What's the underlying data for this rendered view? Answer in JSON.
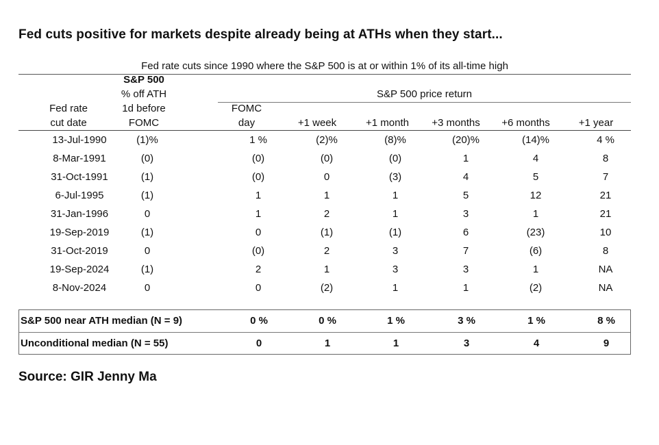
{
  "headline": "Fed cuts positive for markets despite already being at ATHs when they start...",
  "subtitle": "Fed rate cuts since 1990 where the S&P 500 is at or within 1% of its all-time high",
  "header": {
    "col_date": [
      "Fed rate",
      "cut date"
    ],
    "col_off": [
      "S&P 500",
      "% off ATH",
      "1d before",
      "FOMC"
    ],
    "group": "S&P 500 price return",
    "col_fomc": [
      "FOMC",
      "day"
    ],
    "col_week": "+1 week",
    "col_month": "+1 month",
    "col_3m": "+3 months",
    "col_6m": "+6 months",
    "col_1y": "+1 year"
  },
  "rows": [
    [
      "13-Jul-1990",
      "(1)%",
      "1 %",
      "(2)%",
      "(8)%",
      "(20)%",
      "(14)%",
      "4 %"
    ],
    [
      "8-Mar-1991",
      "(0)",
      "(0)",
      "(0)",
      "(0)",
      "1",
      "4",
      "8"
    ],
    [
      "31-Oct-1991",
      "(1)",
      "(0)",
      "0",
      "(3)",
      "4",
      "5",
      "7"
    ],
    [
      "6-Jul-1995",
      "(1)",
      "1",
      "1",
      "1",
      "5",
      "12",
      "21"
    ],
    [
      "31-Jan-1996",
      "0",
      "1",
      "2",
      "1",
      "3",
      "1",
      "21"
    ],
    [
      "19-Sep-2019",
      "(1)",
      "0",
      "(1)",
      "(1)",
      "6",
      "(23)",
      "10"
    ],
    [
      "31-Oct-2019",
      "0",
      "(0)",
      "2",
      "3",
      "7",
      "(6)",
      "8"
    ],
    [
      "19-Sep-2024",
      "(1)",
      "2",
      "1",
      "3",
      "3",
      "1",
      "NA"
    ],
    [
      "8-Nov-2024",
      "0",
      "0",
      "(2)",
      "1",
      "1",
      "(2)",
      "NA"
    ]
  ],
  "summary": [
    {
      "label": "S&P 500 near ATH median (N = 9)",
      "values": [
        "0 %",
        "0 %",
        "1 %",
        "3 %",
        "1 %",
        "8 %"
      ]
    },
    {
      "label": "Unconditional median (N = 55)",
      "values": [
        "0",
        "1",
        "1",
        "3",
        "4",
        "9"
      ]
    }
  ],
  "source": "Source: GIR Jenny Ma"
}
